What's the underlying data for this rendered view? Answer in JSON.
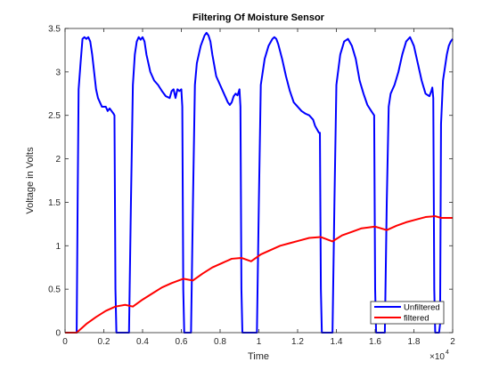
{
  "chart_data": {
    "type": "line",
    "title": "Filtering Of Moisture Sensor",
    "xlabel": "Time",
    "ylabel": "Voltage in Volts",
    "xlim": [
      0,
      20000
    ],
    "ylim": [
      0,
      3.5
    ],
    "x_exponent_label": "×10",
    "x_exponent_power": "4",
    "xticks": [
      {
        "value": 0,
        "label": "0"
      },
      {
        "value": 2000,
        "label": "0.2"
      },
      {
        "value": 4000,
        "label": "0.4"
      },
      {
        "value": 6000,
        "label": "0.6"
      },
      {
        "value": 8000,
        "label": "0.8"
      },
      {
        "value": 10000,
        "label": "1"
      },
      {
        "value": 12000,
        "label": "1.2"
      },
      {
        "value": 14000,
        "label": "1.4"
      },
      {
        "value": 16000,
        "label": "1.6"
      },
      {
        "value": 18000,
        "label": "1.8"
      },
      {
        "value": 20000,
        "label": "2"
      }
    ],
    "yticks": [
      {
        "value": 0,
        "label": "0"
      },
      {
        "value": 0.5,
        "label": "0.5"
      },
      {
        "value": 1,
        "label": "1"
      },
      {
        "value": 1.5,
        "label": "1.5"
      },
      {
        "value": 2,
        "label": "2"
      },
      {
        "value": 2.5,
        "label": "2.5"
      },
      {
        "value": 3,
        "label": "3"
      },
      {
        "value": 3.5,
        "label": "3.5"
      }
    ],
    "grid": false,
    "legend_position": "bottom-right",
    "series": [
      {
        "name": "Unfiltered",
        "color": "#0000ff",
        "points": [
          [
            0,
            0
          ],
          [
            600,
            0
          ],
          [
            650,
            1.5
          ],
          [
            700,
            2.8
          ],
          [
            800,
            3.1
          ],
          [
            900,
            3.38
          ],
          [
            1000,
            3.4
          ],
          [
            1100,
            3.38
          ],
          [
            1200,
            3.4
          ],
          [
            1300,
            3.35
          ],
          [
            1400,
            3.2
          ],
          [
            1500,
            3.0
          ],
          [
            1600,
            2.8
          ],
          [
            1700,
            2.7
          ],
          [
            1800,
            2.65
          ],
          [
            1900,
            2.6
          ],
          [
            2000,
            2.6
          ],
          [
            2100,
            2.6
          ],
          [
            2200,
            2.55
          ],
          [
            2300,
            2.58
          ],
          [
            2400,
            2.55
          ],
          [
            2500,
            2.52
          ],
          [
            2550,
            2.5
          ],
          [
            2600,
            0.5
          ],
          [
            2650,
            0
          ],
          [
            3300,
            0
          ],
          [
            3400,
            1.5
          ],
          [
            3500,
            2.85
          ],
          [
            3600,
            3.2
          ],
          [
            3700,
            3.35
          ],
          [
            3800,
            3.4
          ],
          [
            3900,
            3.37
          ],
          [
            4000,
            3.4
          ],
          [
            4100,
            3.35
          ],
          [
            4200,
            3.2
          ],
          [
            4400,
            3.0
          ],
          [
            4600,
            2.9
          ],
          [
            4800,
            2.85
          ],
          [
            5000,
            2.78
          ],
          [
            5200,
            2.72
          ],
          [
            5400,
            2.7
          ],
          [
            5500,
            2.78
          ],
          [
            5600,
            2.8
          ],
          [
            5700,
            2.7
          ],
          [
            5800,
            2.8
          ],
          [
            5900,
            2.78
          ],
          [
            6000,
            2.8
          ],
          [
            6050,
            2.6
          ],
          [
            6100,
            0.5
          ],
          [
            6150,
            0
          ],
          [
            6500,
            0
          ],
          [
            6600,
            1.5
          ],
          [
            6700,
            2.85
          ],
          [
            6800,
            3.1
          ],
          [
            7000,
            3.3
          ],
          [
            7200,
            3.42
          ],
          [
            7300,
            3.45
          ],
          [
            7400,
            3.42
          ],
          [
            7500,
            3.35
          ],
          [
            7600,
            3.2
          ],
          [
            7800,
            2.95
          ],
          [
            8000,
            2.85
          ],
          [
            8200,
            2.75
          ],
          [
            8400,
            2.65
          ],
          [
            8500,
            2.62
          ],
          [
            8600,
            2.65
          ],
          [
            8700,
            2.72
          ],
          [
            8800,
            2.75
          ],
          [
            8900,
            2.73
          ],
          [
            9000,
            2.8
          ],
          [
            9050,
            2.6
          ],
          [
            9100,
            0.5
          ],
          [
            9150,
            0
          ],
          [
            9900,
            0
          ],
          [
            10000,
            1.5
          ],
          [
            10100,
            2.85
          ],
          [
            10300,
            3.15
          ],
          [
            10500,
            3.3
          ],
          [
            10700,
            3.38
          ],
          [
            10800,
            3.4
          ],
          [
            10900,
            3.38
          ],
          [
            11000,
            3.32
          ],
          [
            11200,
            3.15
          ],
          [
            11400,
            2.95
          ],
          [
            11600,
            2.78
          ],
          [
            11800,
            2.65
          ],
          [
            12000,
            2.6
          ],
          [
            12200,
            2.55
          ],
          [
            12400,
            2.52
          ],
          [
            12600,
            2.5
          ],
          [
            12800,
            2.45
          ],
          [
            12900,
            2.38
          ],
          [
            13100,
            2.3
          ],
          [
            13150,
            2.3
          ],
          [
            13200,
            0.5
          ],
          [
            13250,
            0
          ],
          [
            13800,
            0
          ],
          [
            13900,
            1.5
          ],
          [
            14000,
            2.85
          ],
          [
            14200,
            3.2
          ],
          [
            14400,
            3.35
          ],
          [
            14600,
            3.38
          ],
          [
            14800,
            3.3
          ],
          [
            15000,
            3.15
          ],
          [
            15200,
            2.9
          ],
          [
            15400,
            2.75
          ],
          [
            15600,
            2.62
          ],
          [
            15800,
            2.55
          ],
          [
            15950,
            2.5
          ],
          [
            16000,
            0.5
          ],
          [
            16050,
            0
          ],
          [
            16500,
            0
          ],
          [
            16600,
            1.5
          ],
          [
            16700,
            2.6
          ],
          [
            16800,
            2.75
          ],
          [
            17000,
            2.85
          ],
          [
            17200,
            3.0
          ],
          [
            17400,
            3.2
          ],
          [
            17600,
            3.35
          ],
          [
            17800,
            3.4
          ],
          [
            18000,
            3.3
          ],
          [
            18200,
            3.1
          ],
          [
            18400,
            2.9
          ],
          [
            18600,
            2.75
          ],
          [
            18800,
            2.72
          ],
          [
            18900,
            2.78
          ],
          [
            18950,
            2.82
          ],
          [
            19000,
            2.7
          ],
          [
            19050,
            0.5
          ],
          [
            19100,
            0
          ],
          [
            19300,
            0
          ],
          [
            19350,
            0.1
          ],
          [
            19400,
            2.4
          ],
          [
            19500,
            2.9
          ],
          [
            19700,
            3.2
          ],
          [
            19800,
            3.3
          ],
          [
            19900,
            3.35
          ],
          [
            20000,
            3.38
          ]
        ]
      },
      {
        "name": "filtered",
        "color": "#ff0000",
        "points": [
          [
            0,
            0
          ],
          [
            600,
            0
          ],
          [
            1100,
            0.1
          ],
          [
            1600,
            0.18
          ],
          [
            2100,
            0.25
          ],
          [
            2600,
            0.3
          ],
          [
            3100,
            0.32
          ],
          [
            3500,
            0.3
          ],
          [
            4000,
            0.38
          ],
          [
            4500,
            0.45
          ],
          [
            5000,
            0.52
          ],
          [
            5500,
            0.57
          ],
          [
            6100,
            0.62
          ],
          [
            6600,
            0.6
          ],
          [
            7100,
            0.68
          ],
          [
            7600,
            0.75
          ],
          [
            8100,
            0.8
          ],
          [
            8600,
            0.85
          ],
          [
            9100,
            0.86
          ],
          [
            9600,
            0.82
          ],
          [
            10100,
            0.9
          ],
          [
            10600,
            0.95
          ],
          [
            11100,
            1.0
          ],
          [
            11600,
            1.03
          ],
          [
            12100,
            1.06
          ],
          [
            12600,
            1.09
          ],
          [
            13200,
            1.1
          ],
          [
            13800,
            1.05
          ],
          [
            14300,
            1.12
          ],
          [
            14800,
            1.16
          ],
          [
            15300,
            1.2
          ],
          [
            16000,
            1.22
          ],
          [
            16600,
            1.18
          ],
          [
            17100,
            1.23
          ],
          [
            17600,
            1.27
          ],
          [
            18100,
            1.3
          ],
          [
            18600,
            1.33
          ],
          [
            19100,
            1.34
          ],
          [
            19400,
            1.32
          ],
          [
            20000,
            1.32
          ]
        ]
      }
    ]
  }
}
